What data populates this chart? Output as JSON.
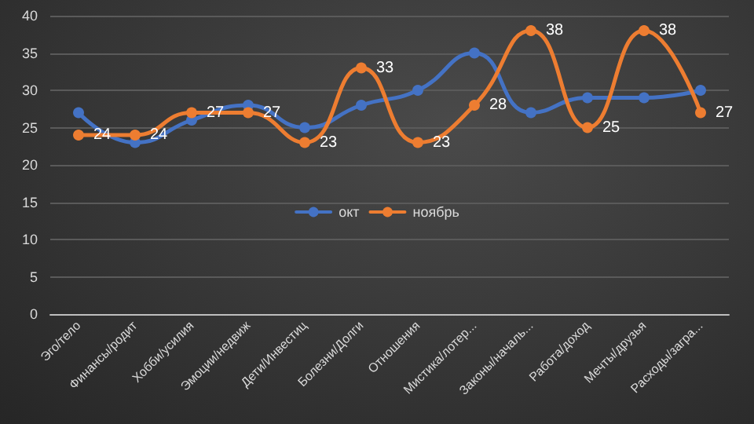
{
  "chart_data": {
    "type": "line",
    "categories": [
      "Эго/тело",
      "Финансы/родит",
      "Хобби/усилия",
      "Эмоции/недвиж",
      "Дети/Инвестиц",
      "Болезни/Долги",
      "Отношения",
      "Мистика/лотер...",
      "Законы/началь...",
      "Работа/доход",
      "Мечты/друзья",
      "Расходы/загра..."
    ],
    "series": [
      {
        "name": "окт",
        "color": "#4472c4",
        "values": [
          27,
          23,
          26,
          28,
          25,
          28,
          30,
          35,
          27,
          29,
          29,
          30
        ]
      },
      {
        "name": "ноябрь",
        "color": "#ed7d31",
        "values": [
          24,
          24,
          27,
          27,
          23,
          33,
          23,
          28,
          38,
          25,
          38,
          27
        ],
        "value_labels": [
          "24",
          "24",
          "27",
          "27",
          "23",
          "33",
          "23",
          "28",
          "38",
          "25",
          "38",
          "27"
        ]
      }
    ],
    "ylim": [
      0,
      40
    ],
    "yticks": [
      0,
      5,
      10,
      15,
      20,
      25,
      30,
      35,
      40
    ],
    "grid": "y",
    "legend": "center",
    "marker": "circle",
    "line_style": "solid"
  }
}
